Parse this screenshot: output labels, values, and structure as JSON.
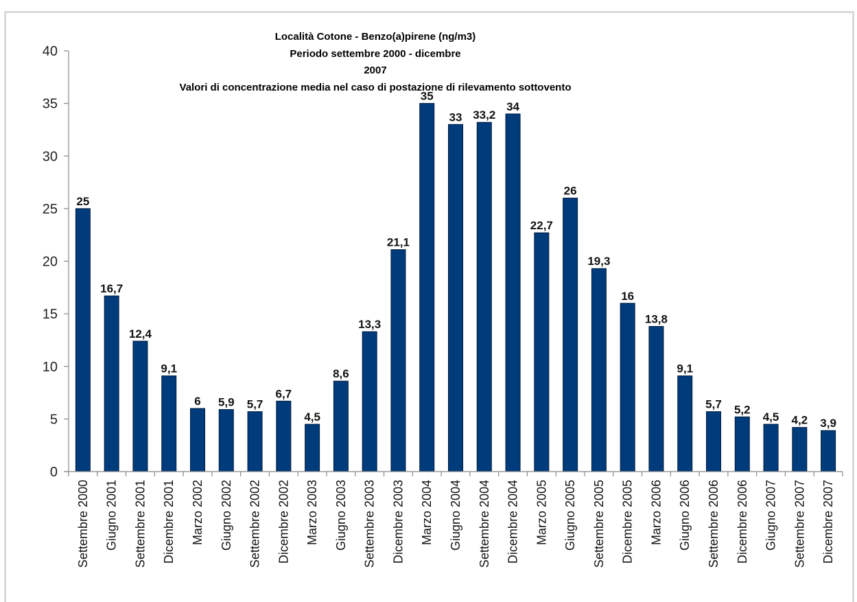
{
  "chart_data": {
    "type": "bar",
    "title_lines": [
      "Località Cotone - Benzo(a)pirene (ng/m3)",
      "Periodo settembre 2000 - dicembre",
      "2007",
      "Valori di concentrazione media nel caso di postazione di rilevamento sottovento"
    ],
    "categories": [
      "Settembre 2000",
      "Giugno 2001",
      "Settembre 2001",
      "Dicembre 2001",
      "Marzo 2002",
      "Giugno 2002",
      "Settembre 2002",
      "Dicembre 2002",
      "Marzo 2003",
      "Giugno 2003",
      "Settembre 2003",
      "Dicembre 2003",
      "Marzo 2004",
      "Giugno 2004",
      "Settembre 2004",
      "Dicembre 2004",
      "Marzo 2005",
      "Giugno 2005",
      "Settembre 2005",
      "Dicembre 2005",
      "Marzo 2006",
      "Giugno 2006",
      "Settembre 2006",
      "Dicembre 2006",
      "Giugno 2007",
      "Settembre 2007",
      "Dicembre 2007"
    ],
    "values": [
      25,
      16.7,
      12.4,
      9.1,
      6,
      5.9,
      5.7,
      6.7,
      4.5,
      8.6,
      13.3,
      21.1,
      35,
      33,
      33.2,
      34,
      22.7,
      26,
      19.3,
      16,
      13.8,
      9.1,
      5.7,
      5.2,
      4.5,
      4.2,
      3.9
    ],
    "value_labels": [
      "25",
      "16,7",
      "12,4",
      "9,1",
      "6",
      "5,9",
      "5,7",
      "6,7",
      "4,5",
      "8,6",
      "13,3",
      "21,1",
      "35",
      "33",
      "33,2",
      "34",
      "22,7",
      "26",
      "19,3",
      "16",
      "13,8",
      "9,1",
      "5,7",
      "5,2",
      "4,5",
      "4,2",
      "3,9"
    ],
    "yticks": [
      "0",
      "5",
      "10",
      "15",
      "20",
      "25",
      "30",
      "35",
      "40"
    ],
    "ylim": [
      0,
      40
    ],
    "grid": false,
    "legend": "none",
    "bar_color": "#003b7c",
    "bar_border_color": "#001a3d",
    "axis_color": "#888888"
  }
}
